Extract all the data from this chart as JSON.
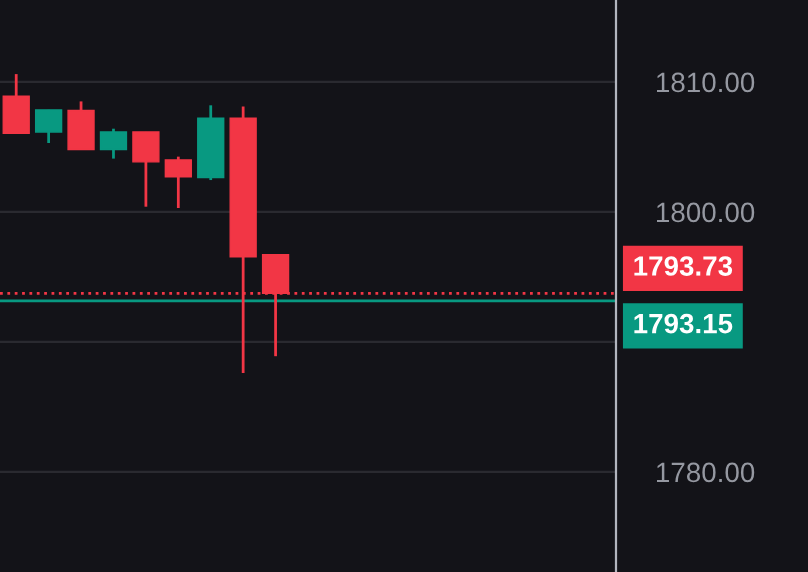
{
  "chart_data": {
    "type": "candlestick",
    "categories": [
      null,
      null,
      null,
      null,
      null,
      null,
      null,
      null,
      null,
      null,
      null,
      null,
      null,
      null,
      null,
      null,
      null,
      null,
      null
    ],
    "ohlc": [
      [
        1808.9,
        1810.6,
        1806.05,
        1806.05
      ],
      [
        1806.15,
        1807.85,
        1805.3,
        1807.85
      ],
      [
        1807.8,
        1808.5,
        1804.8,
        1804.8
      ],
      [
        1804.8,
        1806.4,
        1804.1,
        1806.15
      ],
      [
        1806.15,
        1806.15,
        1800.4,
        1803.85
      ],
      [
        1804.0,
        1804.25,
        1800.3,
        1802.7
      ],
      [
        1802.65,
        1808.2,
        1802.45,
        1807.2
      ],
      [
        1807.2,
        1808.1,
        1787.6,
        1796.55
      ],
      [
        1796.7,
        1796.7,
        1788.9,
        1793.73
      ],
      null,
      null,
      null,
      null,
      null,
      null,
      null,
      null,
      null,
      null
    ],
    "colors": [
      "#f23645",
      "#089981",
      "#f23645",
      "#089981",
      "#f23645",
      "#f23645",
      "#089981",
      "#f23645",
      "#f23645",
      null,
      null,
      null,
      null,
      null,
      null,
      null,
      null,
      null,
      null
    ],
    "ylim": [
      1772.3,
      1816.3
    ],
    "yticks": [
      {
        "value": 1780,
        "label": "1780.00"
      },
      {
        "value": 1790,
        "label": null
      },
      {
        "value": 1800,
        "label": "1800.00"
      },
      {
        "value": 1810,
        "label": "1810.00"
      }
    ],
    "grid": "y",
    "ref_lines": [
      {
        "axis": "y",
        "value": 1793.73,
        "label": "1793.73",
        "color": "#f23645",
        "line_style": "dotted"
      },
      {
        "axis": "y",
        "value": 1793.15,
        "label": "1793.15",
        "color": "#089981",
        "line_style": "solid"
      }
    ]
  }
}
